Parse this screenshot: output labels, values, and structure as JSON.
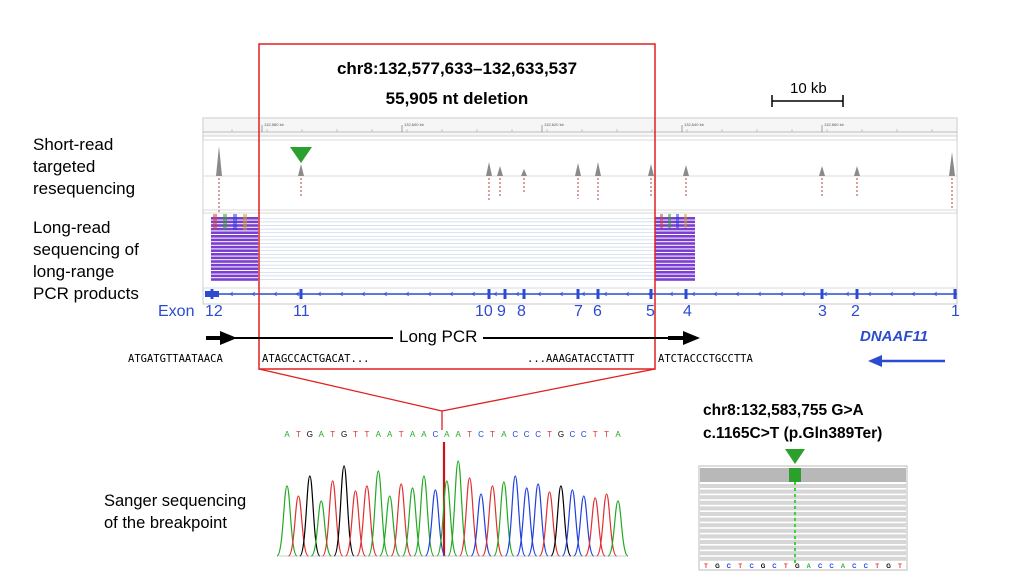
{
  "deletion": {
    "coords": "chr8:132,577,633–132,633,537",
    "size": "55,905 nt deletion"
  },
  "scale_bar": {
    "label": "10 kb"
  },
  "tracks": {
    "short_read": "Short-read\ntargeted\nresequencing",
    "long_read": "Long-read\nsequencing of\nlong-range\nPCR products"
  },
  "ruler_ticks": [
    "132,580 kb",
    "132,600 kb",
    "132,620 kb",
    "132,640 kb",
    "132,660 kb"
  ],
  "exons": {
    "label": "Exon",
    "numbers": [
      "12",
      "11",
      "10",
      "9",
      "8",
      "7",
      "6",
      "5",
      "4",
      "3",
      "2",
      "1"
    ]
  },
  "gene": {
    "name": "DNAAF11"
  },
  "long_pcr": {
    "label": "Long PCR"
  },
  "sequences": {
    "left_a": "ATGATGTTAATAACA",
    "left_b": "ATAGCCACTGACAT...",
    "right_a": "...AAAGATACCTATTT",
    "right_b": "ATCTACCCTGCCTTA"
  },
  "sanger": {
    "label": "Sanger sequencing\nof the breakpoint",
    "bases": "ATGATGTTAATAACAATCTACCCTGCCTTA"
  },
  "mutation": {
    "position": "chr8:132,583,755 G>A",
    "protein": "c.1165C>T (p.Gln389Ter)",
    "ref_bases": "TGCTCGCTGACCACCTGT"
  },
  "colors": {
    "box": "#e02020",
    "exon_blue": "#2b4bd0",
    "read_purple": "#7a3fd0",
    "marker_green": "#2ca02c",
    "A": "#22aa22",
    "C": "#2040e0",
    "G": "#000000",
    "T": "#e03030"
  }
}
